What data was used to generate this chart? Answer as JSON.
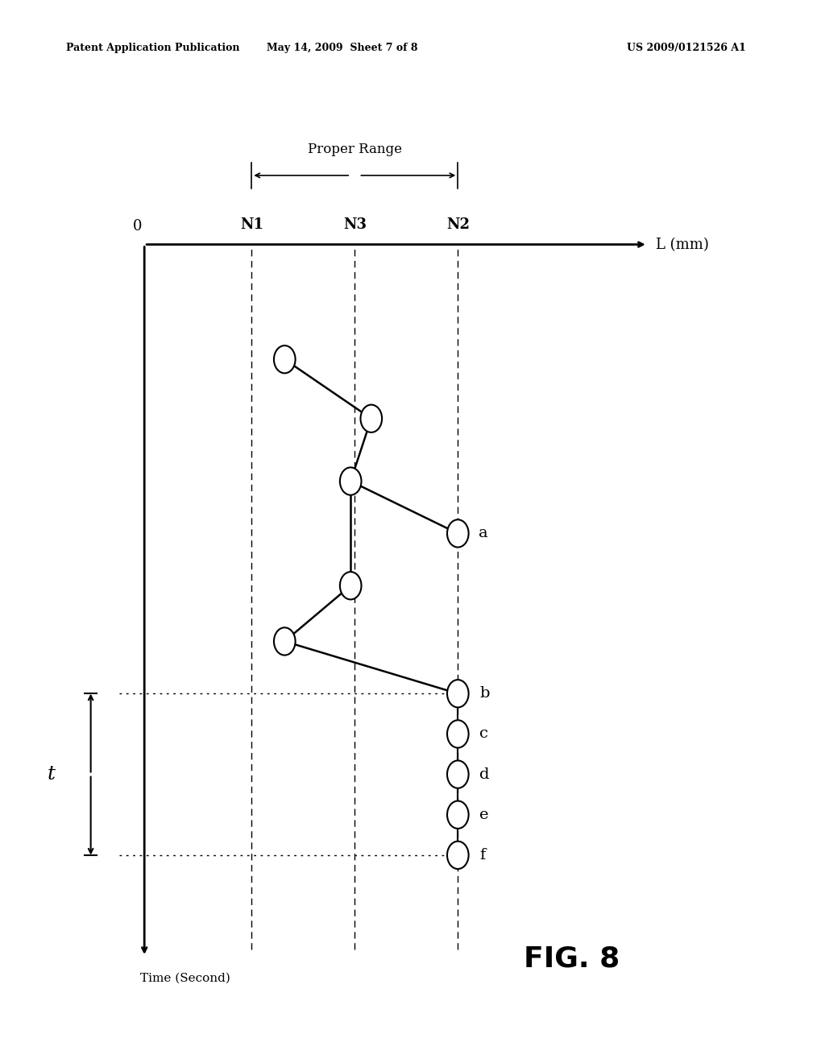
{
  "bg_color": "#ffffff",
  "header_left": "Patent Application Publication",
  "header_mid": "May 14, 2009  Sheet 7 of 8",
  "header_right": "US 2009/0121526 A1",
  "fig_label": "FIG. 8",
  "proper_range_label": "Proper Range",
  "x_axis_label": "L (mm)",
  "y_axis_label": "Time (Second)",
  "x_tick_labels": [
    "0",
    "N1",
    "N3",
    "N2"
  ],
  "circle_r": 0.013
}
